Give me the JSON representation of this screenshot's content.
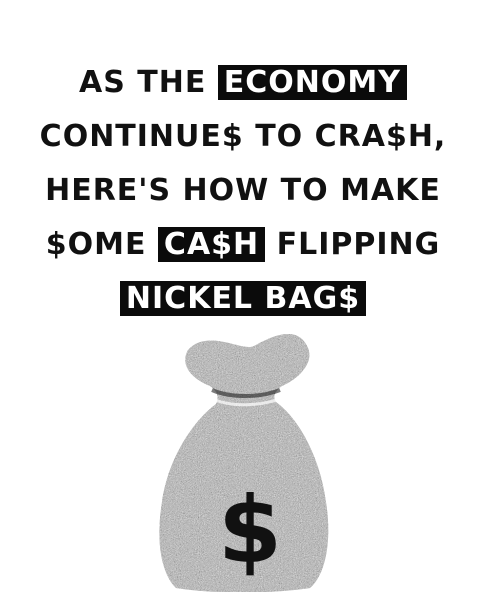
{
  "headline": {
    "line1_pre": "As the ",
    "line1_hl": "Economy",
    "line2": "Continue$ to Cra$h,",
    "line3": "here's how to make",
    "line4_pre": "$ome ",
    "line4_hl": "Ca$h",
    "line4_post": " Flipping",
    "line5_hl": "Nickel Bag$"
  },
  "illustration": {
    "icon": "money-bag-icon",
    "symbol": "$",
    "ink_color": "#111111",
    "paper_color": "#ffffff"
  }
}
